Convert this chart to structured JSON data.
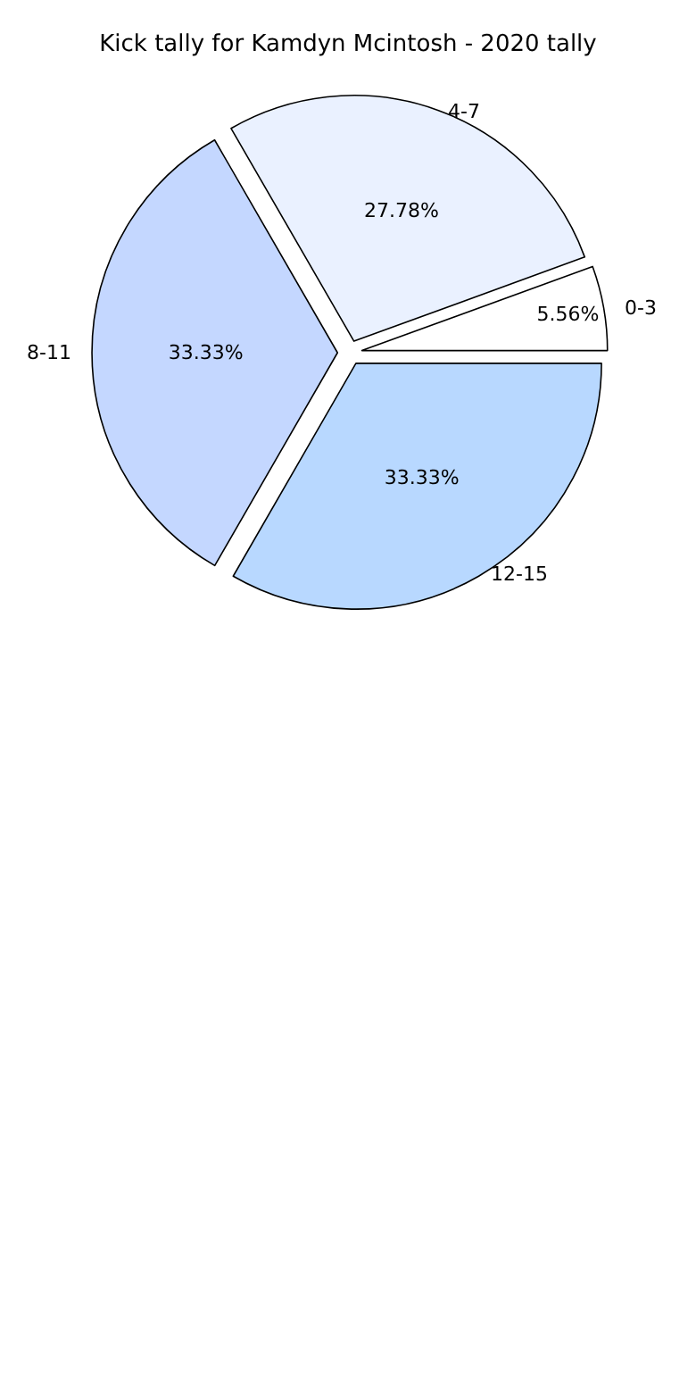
{
  "chart_data": {
    "type": "pie",
    "title": "Kick tally for Kamdyn Mcintosh - 2020 tally",
    "categories": [
      "0-3",
      "4-7",
      "8-11",
      "12-15"
    ],
    "values": [
      5.56,
      27.78,
      33.33,
      33.33
    ],
    "value_labels": [
      "5.56%",
      "27.78%",
      "33.33%",
      "33.33%"
    ],
    "colors": [
      "#ffffff",
      "#eaf1ff",
      "#c4d7ff",
      "#b8d8ff"
    ],
    "legend": false
  }
}
